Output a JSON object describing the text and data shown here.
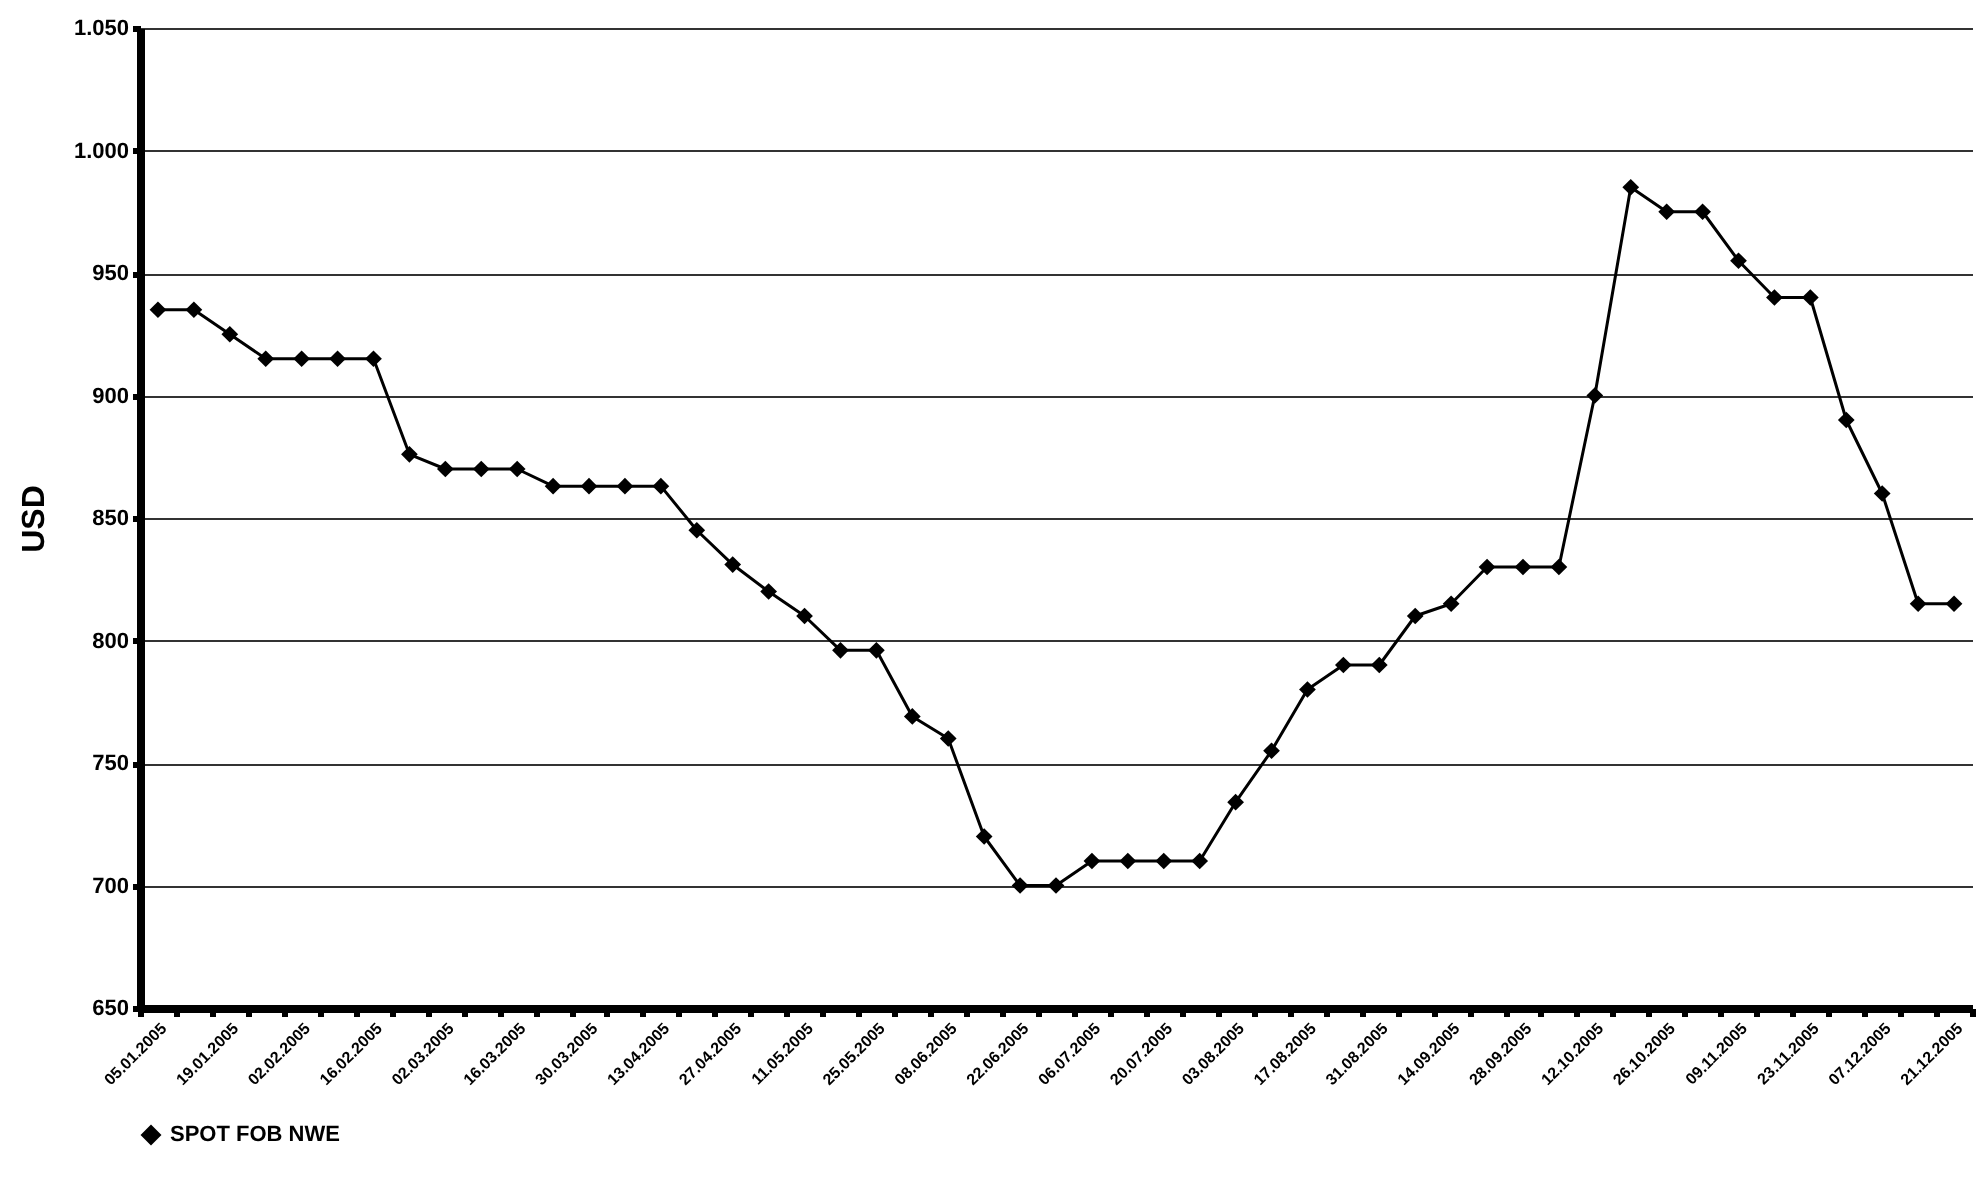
{
  "chart_data": {
    "type": "line",
    "ylabel": "USD",
    "categories": [
      "05.01.2005",
      null,
      "19.01.2005",
      null,
      "02.02.2005",
      null,
      "16.02.2005",
      null,
      "02.03.2005",
      null,
      "16.03.2005",
      null,
      "30.03.2005",
      null,
      "13.04.2005",
      null,
      "27.04.2005",
      null,
      "11.05.2005",
      null,
      "25.05.2005",
      null,
      "08.06.2005",
      null,
      "22.06.2005",
      null,
      "06.07.2005",
      null,
      "20.07.2005",
      null,
      "03.08.2005",
      null,
      "17.08.2005",
      null,
      "31.08.2005",
      null,
      "14.09.2005",
      null,
      "28.09.2005",
      null,
      "12.10.2005",
      null,
      "26.10.2005",
      null,
      "09.11.2005",
      null,
      "23.11.2005",
      null,
      "07.12.2005",
      null,
      "21.12.2005"
    ],
    "series": [
      {
        "name": "SPOT FOB NWE",
        "color": "#000000",
        "values": [
          935,
          935,
          925,
          915,
          915,
          915,
          915,
          876,
          870,
          870,
          870,
          863,
          863,
          863,
          863,
          845,
          831,
          820,
          810,
          796,
          796,
          769,
          760,
          720,
          700,
          700,
          710,
          710,
          710,
          710,
          734,
          755,
          780,
          790,
          790,
          810,
          815,
          830,
          830,
          830,
          900,
          985,
          975,
          975,
          955,
          940,
          940,
          890,
          860,
          815,
          815
        ]
      }
    ],
    "ylim": [
      650,
      1050
    ],
    "yticks": [
      650,
      700,
      750,
      800,
      850,
      900,
      950,
      {
        "value": 1000,
        "label": "1.000"
      },
      {
        "value": 1050,
        "label": "1.050"
      }
    ],
    "grid": "y",
    "legend": "bottom",
    "marker": "diamond",
    "line_style": "solid"
  }
}
